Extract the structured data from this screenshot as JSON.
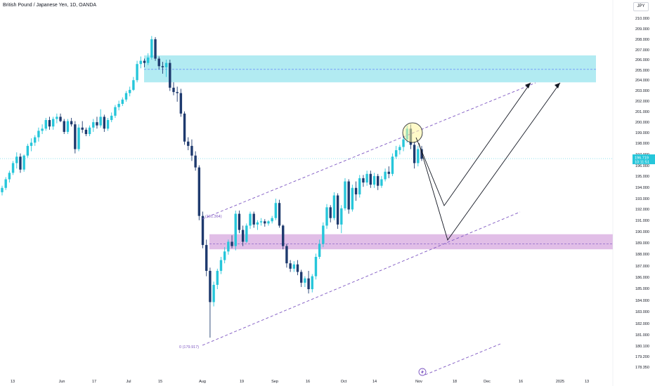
{
  "header": {
    "symbol_title": "British Pound / Japanese Yen, 1D, OANDA",
    "currency_button": "JPY"
  },
  "price_label": {
    "price": "196.719",
    "countdown": "10:11:51"
  },
  "fib_labels": {
    "upper": "(191.364)",
    "lower": "0 (179.917)"
  },
  "colors": {
    "up": "#26c6da",
    "down": "#1e3a6e",
    "resistance_zone": "#b2ebf2",
    "support_zone": "#e1bee7",
    "channel": "#7e57c2",
    "path": "#131722",
    "highlight": "#fff59d"
  },
  "icons": {
    "marker": "lightning-icon"
  },
  "chart_data": {
    "type": "candlestick",
    "title": "British Pound / Japanese Yen, 1D, OANDA",
    "y_range": [
      177.5,
      211.0
    ],
    "y_ticks": [
      "178.350",
      "179.200",
      "180.100",
      "181.000",
      "182.000",
      "183.000",
      "184.000",
      "185.000",
      "186.000",
      "187.000",
      "188.000",
      "189.000",
      "190.000",
      "191.000",
      "192.000",
      "193.000",
      "194.000",
      "195.000",
      "196.000",
      "197.000",
      "198.000",
      "199.000",
      "200.000",
      "201.000",
      "202.000",
      "203.000",
      "204.000",
      "205.000",
      "206.000",
      "207.000",
      "208.000",
      "209.000",
      "210.000"
    ],
    "x_ticks": [
      "13",
      "Jun",
      "17",
      "Jul",
      "15",
      "Aug",
      "19",
      "Sep",
      "16",
      "Oct",
      "14",
      "Nov",
      "18",
      "Dec",
      "16",
      "2025",
      "13"
    ],
    "zones": [
      {
        "name": "resistance",
        "low": 203.8,
        "high": 206.3,
        "mid": 205.0
      },
      {
        "name": "support",
        "low": 188.3,
        "high": 189.7,
        "mid": 188.8
      }
    ],
    "candles_approx": [
      [
        193.6,
        194.2,
        193.3,
        194.0
      ],
      [
        194.0,
        195.0,
        193.8,
        194.8
      ],
      [
        194.8,
        195.6,
        194.5,
        195.4
      ],
      [
        195.4,
        196.5,
        195.2,
        196.3
      ],
      [
        196.3,
        197.3,
        195.8,
        196.9
      ],
      [
        196.9,
        197.2,
        195.4,
        195.7
      ],
      [
        195.7,
        197.1,
        195.5,
        197.0
      ],
      [
        197.0,
        198.1,
        196.8,
        197.9
      ],
      [
        197.9,
        198.6,
        197.4,
        198.2
      ],
      [
        198.2,
        198.9,
        197.9,
        198.7
      ],
      [
        198.7,
        199.6,
        198.3,
        199.3
      ],
      [
        199.3,
        199.9,
        199.0,
        199.5
      ],
      [
        199.5,
        200.5,
        199.3,
        200.3
      ],
      [
        200.3,
        200.6,
        199.4,
        199.7
      ],
      [
        199.7,
        200.6,
        199.4,
        200.4
      ],
      [
        200.4,
        200.9,
        200.0,
        200.6
      ],
      [
        200.6,
        200.9,
        200.1,
        200.2
      ],
      [
        200.2,
        200.4,
        199.0,
        199.2
      ],
      [
        199.2,
        200.4,
        199.0,
        200.2
      ],
      [
        200.2,
        200.5,
        199.7,
        199.9
      ],
      [
        199.9,
        200.2,
        197.2,
        197.6
      ],
      [
        197.6,
        199.9,
        197.4,
        199.6
      ],
      [
        199.6,
        200.2,
        199.1,
        199.4
      ],
      [
        199.4,
        199.6,
        198.8,
        199.0
      ],
      [
        199.0,
        199.8,
        198.8,
        199.6
      ],
      [
        199.6,
        200.4,
        199.2,
        200.1
      ],
      [
        200.1,
        200.6,
        199.5,
        199.8
      ],
      [
        199.8,
        201.3,
        199.6,
        200.6
      ],
      [
        200.6,
        200.8,
        199.2,
        199.5
      ],
      [
        199.5,
        200.5,
        199.3,
        200.3
      ],
      [
        200.3,
        201.0,
        200.1,
        200.7
      ],
      [
        200.7,
        201.7,
        200.5,
        201.5
      ],
      [
        201.5,
        202.1,
        201.2,
        201.8
      ],
      [
        201.8,
        202.4,
        201.6,
        202.2
      ],
      [
        202.2,
        203.0,
        202.0,
        202.8
      ],
      [
        202.8,
        203.4,
        202.5,
        203.1
      ],
      [
        203.1,
        204.3,
        203.0,
        204.0
      ],
      [
        204.0,
        205.8,
        203.8,
        205.5
      ],
      [
        205.5,
        206.2,
        205.1,
        205.8
      ],
      [
        205.8,
        206.0,
        205.2,
        205.6
      ],
      [
        205.6,
        206.5,
        205.4,
        206.1
      ],
      [
        206.1,
        208.1,
        205.9,
        207.8
      ],
      [
        207.8,
        208.0,
        205.8,
        206.0
      ],
      [
        206.0,
        206.2,
        205.0,
        205.3
      ],
      [
        205.3,
        205.7,
        204.6,
        205.2
      ],
      [
        205.2,
        205.9,
        204.3,
        205.6
      ],
      [
        205.6,
        205.9,
        203.0,
        203.3
      ],
      [
        203.3,
        203.8,
        202.6,
        202.9
      ],
      [
        202.9,
        203.4,
        202.0,
        202.8
      ],
      [
        202.8,
        203.2,
        200.6,
        200.9
      ],
      [
        200.9,
        201.1,
        198.0,
        198.3
      ],
      [
        198.3,
        198.7,
        197.5,
        197.9
      ],
      [
        197.9,
        198.5,
        196.5,
        197.0
      ],
      [
        197.0,
        197.4,
        195.6,
        195.9
      ],
      [
        195.9,
        196.1,
        191.0,
        191.4
      ],
      [
        191.4,
        191.8,
        188.4,
        188.7
      ],
      [
        188.7,
        189.2,
        185.8,
        186.3
      ],
      [
        186.3,
        186.6,
        180.1,
        183.4
      ],
      [
        183.4,
        185.3,
        183.0,
        185.0
      ],
      [
        185.0,
        186.5,
        184.6,
        186.3
      ],
      [
        186.3,
        187.6,
        186.0,
        187.3
      ],
      [
        187.3,
        188.5,
        187.0,
        188.1
      ],
      [
        188.1,
        189.2,
        187.8,
        189.0
      ],
      [
        189.0,
        189.6,
        188.4,
        188.6
      ],
      [
        188.6,
        191.9,
        188.2,
        191.6
      ],
      [
        191.6,
        191.9,
        189.8,
        190.1
      ],
      [
        190.1,
        190.5,
        188.6,
        189.0
      ],
      [
        189.0,
        190.7,
        188.9,
        190.5
      ],
      [
        190.5,
        191.8,
        190.2,
        191.6
      ],
      [
        191.6,
        191.8,
        190.3,
        190.6
      ],
      [
        190.6,
        191.0,
        190.1,
        190.8
      ],
      [
        190.8,
        191.2,
        190.5,
        190.9
      ],
      [
        190.9,
        191.1,
        190.4,
        190.7
      ],
      [
        190.7,
        191.0,
        190.5,
        190.9
      ],
      [
        190.9,
        191.4,
        190.7,
        191.2
      ],
      [
        191.2,
        193.0,
        191.0,
        192.6
      ],
      [
        192.6,
        192.9,
        190.3,
        190.5
      ],
      [
        190.5,
        190.6,
        188.3,
        188.6
      ],
      [
        188.6,
        188.8,
        186.6,
        187.0
      ],
      [
        187.0,
        187.3,
        186.2,
        186.5
      ],
      [
        186.5,
        187.2,
        186.2,
        186.9
      ],
      [
        186.9,
        187.3,
        185.9,
        186.2
      ],
      [
        186.2,
        186.4,
        184.8,
        185.2
      ],
      [
        185.2,
        185.8,
        184.8,
        185.6
      ],
      [
        185.6,
        186.3,
        184.2,
        184.6
      ],
      [
        184.6,
        186.0,
        184.3,
        185.8
      ],
      [
        185.8,
        187.9,
        185.5,
        187.6
      ],
      [
        187.6,
        189.2,
        187.4,
        188.8
      ],
      [
        188.8,
        190.8,
        188.5,
        190.5
      ],
      [
        190.5,
        192.5,
        190.2,
        192.2
      ],
      [
        192.2,
        192.4,
        190.8,
        191.2
      ],
      [
        191.2,
        193.6,
        191.0,
        193.3
      ],
      [
        193.3,
        193.5,
        190.2,
        190.6
      ],
      [
        190.6,
        192.4,
        189.8,
        192.1
      ],
      [
        192.1,
        194.9,
        191.9,
        194.6
      ],
      [
        194.6,
        194.8,
        191.6,
        192.0
      ],
      [
        192.0,
        194.3,
        191.8,
        194.0
      ],
      [
        194.0,
        194.6,
        192.8,
        193.4
      ],
      [
        193.4,
        195.2,
        193.1,
        194.9
      ],
      [
        194.9,
        195.2,
        194.1,
        194.5
      ],
      [
        194.5,
        195.6,
        194.2,
        195.3
      ],
      [
        195.3,
        195.6,
        194.0,
        194.3
      ],
      [
        194.3,
        195.4,
        194.0,
        195.1
      ],
      [
        195.1,
        195.3,
        193.8,
        194.2
      ],
      [
        194.2,
        195.1,
        194.0,
        194.8
      ],
      [
        194.8,
        195.8,
        194.6,
        195.5
      ],
      [
        195.5,
        196.0,
        194.9,
        195.3
      ],
      [
        195.3,
        197.2,
        195.1,
        196.9
      ],
      [
        196.9,
        197.9,
        196.7,
        197.5
      ],
      [
        197.5,
        198.0,
        197.1,
        197.8
      ],
      [
        197.8,
        198.9,
        197.4,
        198.5
      ],
      [
        198.5,
        199.8,
        198.2,
        199.5
      ],
      [
        199.5,
        199.9,
        197.6,
        198.0
      ],
      [
        198.0,
        198.3,
        195.8,
        196.3
      ],
      [
        196.3,
        197.9,
        196.0,
        197.6
      ],
      [
        197.6,
        197.9,
        196.5,
        196.7
      ]
    ]
  }
}
